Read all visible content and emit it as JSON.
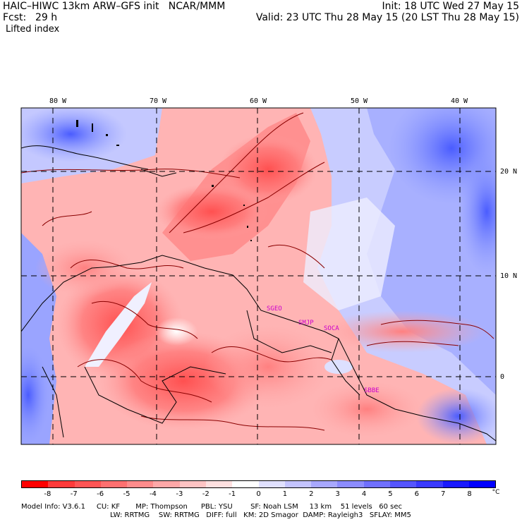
{
  "header": {
    "title": "HAIC–HIWC 13km ARW–GFS init   NCAR/MMM",
    "init": "Init: 18 UTC Wed 27 May 15",
    "fcst_label": "Fcst:",
    "fcst_value": "29 h",
    "valid": "Valid: 23 UTC Thu 28 May 15 (20 LST Thu 28 May 15)",
    "field": "Lifted index"
  },
  "map": {
    "lon_labels": [
      "80 W",
      "70 W",
      "60 W",
      "50 W",
      "40 W"
    ],
    "lat_labels": [
      "20 N",
      "10 N",
      "0"
    ],
    "stations": [
      "SGEO",
      "SMJP",
      "SOCA",
      "SBBE"
    ]
  },
  "colorbar": {
    "labels": [
      "-8",
      "-7",
      "-6",
      "-5",
      "-4",
      "-3",
      "-2",
      "-1",
      "0",
      "1",
      "2",
      "3",
      "4",
      "5",
      "6",
      "7",
      "8"
    ],
    "unit": "°C",
    "colors": [
      "#ff0000",
      "#ff3a3a",
      "#ff5555",
      "#ff7070",
      "#ff8c8c",
      "#ffa8a8",
      "#ffc4c4",
      "#ffe0e0",
      "#ffffff",
      "#e0e0ff",
      "#c4c4ff",
      "#a8a8ff",
      "#8c8cff",
      "#7070ff",
      "#5555ff",
      "#3a3aff",
      "#1a1aff",
      "#0000ff"
    ]
  },
  "model_info": {
    "line1": "Model Info: V3.6.1     CU: KF       MP: Thompson      PBL: YSU        SF: Noah LSM     13 km    51 levels   60 sec",
    "line2": "LW: RRTMG    SW: RRTMG   DIFF: full   KM: 2D Smagor  DAMP: Rayleigh3   SFLAY: MM5"
  }
}
